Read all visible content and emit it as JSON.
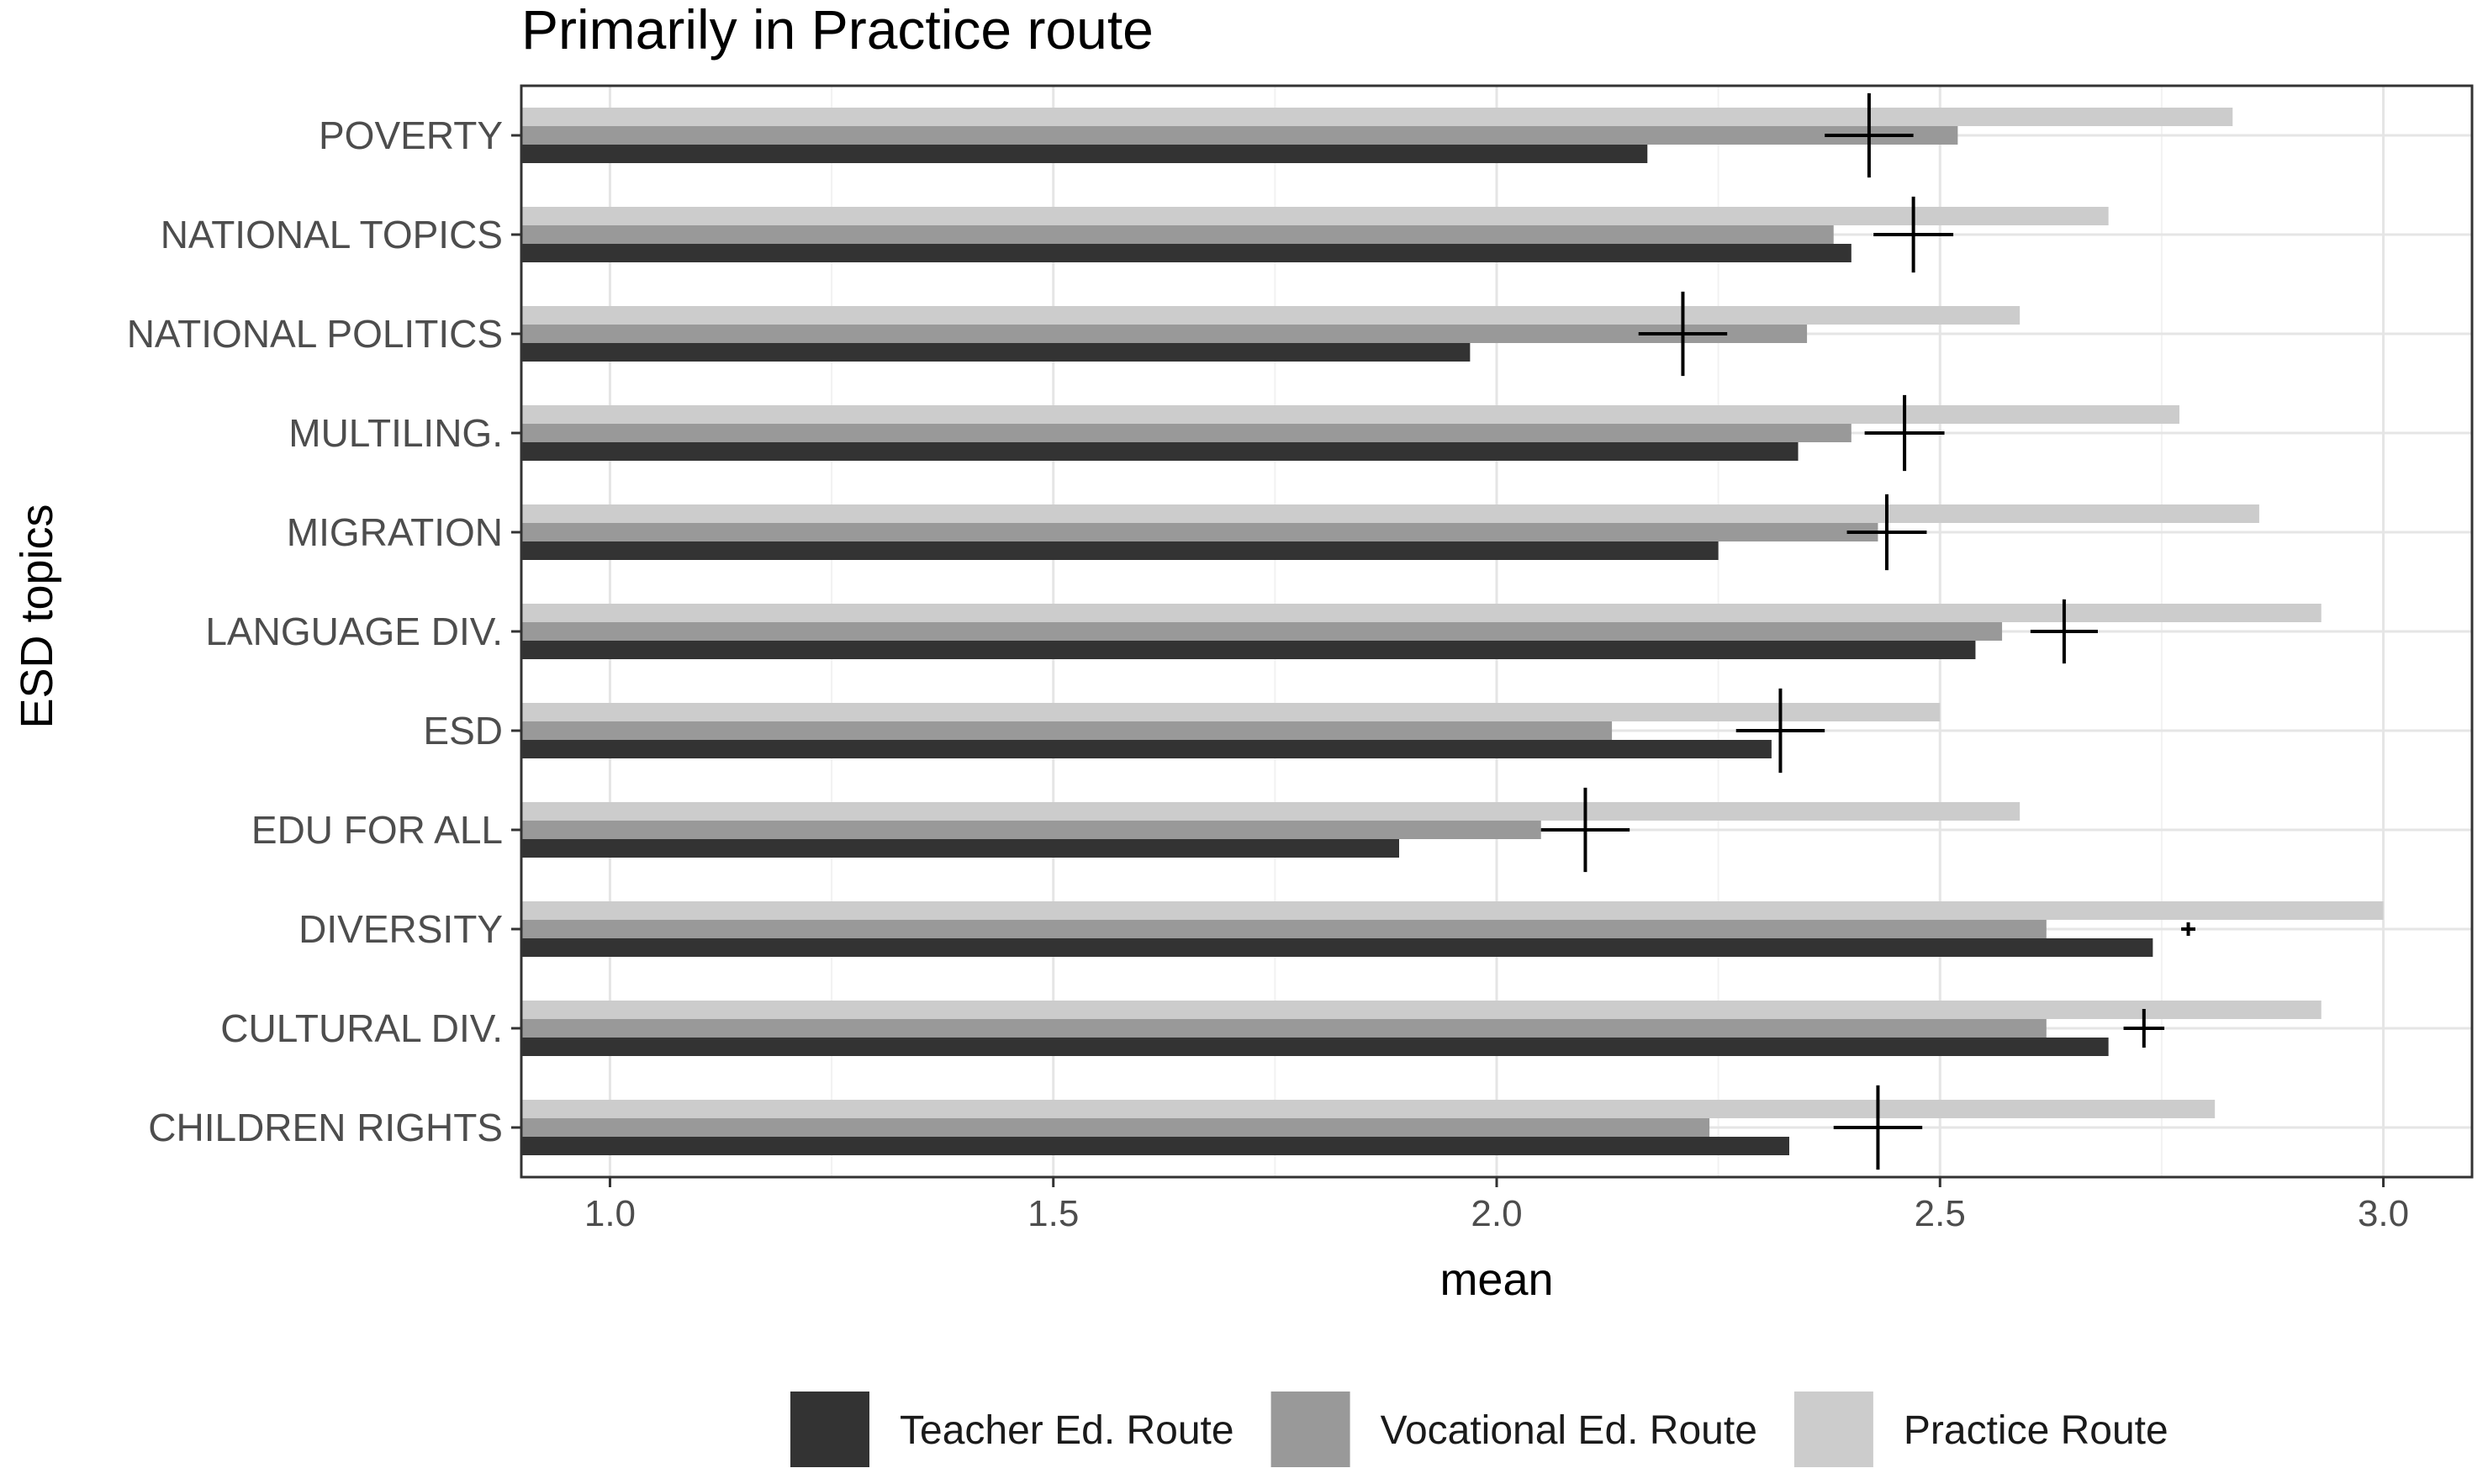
{
  "chart_data": {
    "type": "bar",
    "orientation": "horizontal",
    "title": "Primarily in Practice route",
    "xlabel": "mean",
    "ylabel": "ESD topics",
    "xlim": [
      0.9,
      3.1
    ],
    "xticks": [
      "1.0",
      "1.5",
      "2.0",
      "2.5",
      "3.0"
    ],
    "grid": true,
    "legend_position": "bottom",
    "categories": [
      "POVERTY",
      "NATIONAL TOPICS",
      "NATIONAL POLITICS",
      "MULTILING.",
      "MIGRATION",
      "LANGUAGE DIV.",
      "ESD",
      "EDU FOR ALL",
      "DIVERSITY",
      "CULTURAL DIV.",
      "CHILDREN RIGHTS"
    ],
    "series": [
      {
        "name": "Practice Route",
        "color": "#cccccc",
        "values": [
          2.83,
          2.69,
          2.59,
          2.77,
          2.86,
          2.93,
          2.5,
          2.59,
          3.0,
          2.93,
          2.81
        ]
      },
      {
        "name": "Vocational Ed. Route",
        "color": "#999999",
        "values": [
          2.52,
          2.38,
          2.35,
          2.4,
          2.43,
          2.57,
          2.13,
          2.05,
          2.62,
          2.62,
          2.24
        ]
      },
      {
        "name": "Teacher Ed. Route",
        "color": "#333333",
        "values": [
          2.17,
          2.4,
          1.97,
          2.34,
          2.25,
          2.54,
          2.31,
          1.89,
          2.74,
          2.69,
          2.33
        ]
      }
    ],
    "crosshair_markers": {
      "description": "overall mean marker (cross)",
      "center": [
        2.42,
        2.47,
        2.21,
        2.46,
        2.44,
        2.64,
        2.32,
        2.1,
        2.78,
        2.73,
        2.43
      ],
      "half_width": [
        0.05,
        0.045,
        0.05,
        0.045,
        0.045,
        0.038,
        0.05,
        0.05,
        0.008,
        0.023,
        0.05
      ]
    },
    "legend": [
      "Teacher Ed. Route",
      "Vocational Ed. Route",
      "Practice Route"
    ]
  }
}
